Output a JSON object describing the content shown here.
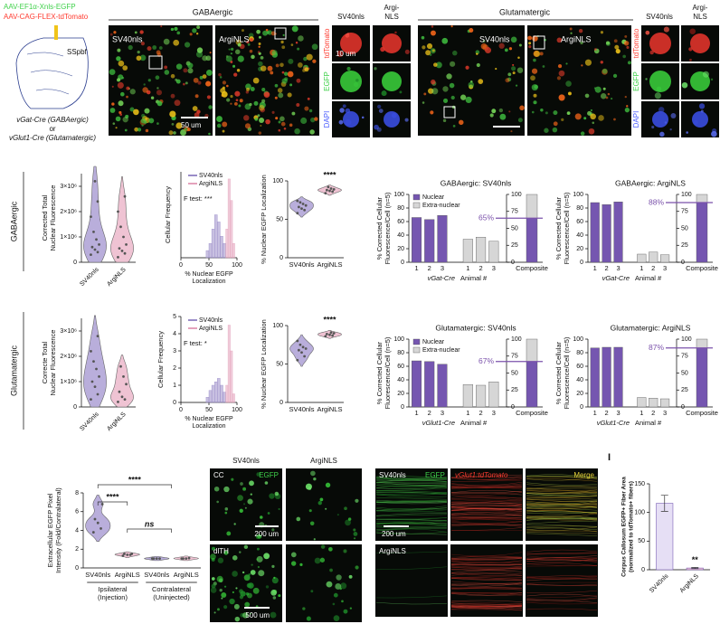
{
  "panel_a": {
    "virus_egfp": "AAV-EF1α-Xnls-EGFP",
    "virus_tdtomato": "AAV-CAG-FLEX-tdTomato",
    "region": "SSpbf",
    "line_gabaergic": "vGat-Cre (GABAergic)",
    "or": "or",
    "line_glutamatergic": "vGlut1-Cre (Glutamatergic)"
  },
  "gabaergic_images": {
    "title": "GABAergic",
    "left": "SV40nls",
    "right": "ArgiNLS",
    "scale": "50 um",
    "zoom_left": "SV40nls",
    "zoom_right": [
      "Argi-",
      "NLS"
    ],
    "rows": [
      "tdTomato",
      "EGFP",
      "DAPI"
    ],
    "zoom_scale": "10 um"
  },
  "glutamatergic_images": {
    "title": "Glutamatergic",
    "left": "SV40nls",
    "right": "ArgiNLS",
    "zoom_left": "SV40nls",
    "zoom_right": [
      "Argi-",
      "NLS"
    ],
    "rows": [
      "tdTomato",
      "EGFP",
      "DAPI"
    ]
  },
  "row_labels": [
    "GABAergic",
    "Glutamatergic"
  ],
  "axon_images": {
    "left": "SV40nls",
    "right": "ArgiNLS",
    "region_top": "CC",
    "channel": "EGFP",
    "scale_top": "200 um",
    "region_bottom": "dlTH",
    "scale_bottom": "500 um"
  },
  "projection_images": {
    "row_top": "SV40nls",
    "row_bottom": "ArgiNLS",
    "channels": [
      "EGFP",
      "vGlut1:tdTomato",
      "Merge"
    ],
    "scale": "200 um"
  },
  "panel_i_letter": "I",
  "chart_data": [
    {
      "type": "violin",
      "y_label": [
        "Corrected Total",
        "Nuclear Fluorescence"
      ],
      "categories": [
        "SV40nls",
        "ArgiNLS"
      ],
      "colors": [
        "#b9aedb",
        "#efc3d3"
      ],
      "values": [
        [
          300000,
          400000,
          500000,
          600000,
          700000,
          900000,
          1200000,
          1800000,
          2400000,
          3200000
        ],
        [
          200000,
          350000,
          450000,
          550000,
          700000,
          1000000,
          1400000,
          2000000,
          2600000
        ]
      ],
      "ylim": [
        0,
        3500000
      ],
      "yticks": [
        0,
        {
          "value": 1000000,
          "label": "1×10⁶"
        },
        {
          "value": 2000000,
          "label": "2×10⁶"
        },
        {
          "value": 3000000,
          "label": "3×10⁶"
        }
      ]
    },
    {
      "type": "histogram",
      "y_label": [
        "Cellular Frequency"
      ],
      "x_label": [
        "% Nuclear EGFP",
        "Localization"
      ],
      "annotation": "F test: ***",
      "xlim": [
        0,
        100
      ],
      "xticks": [
        0,
        50,
        100
      ],
      "ylim": [
        0,
        6
      ],
      "series": [
        {
          "name": "SV40nls",
          "color": "#9a8cc8",
          "bins": [
            45,
            50,
            55,
            60,
            65,
            70,
            75,
            80
          ],
          "values": [
            0.5,
            1,
            2,
            3,
            2.5,
            1.5,
            1
          ]
        },
        {
          "name": "ArgiNLS",
          "color": "#e4a2bc",
          "bins": [
            80,
            84,
            88,
            92,
            96
          ],
          "values": [
            2,
            5.5,
            4,
            1
          ]
        }
      ]
    },
    {
      "type": "violin",
      "y_label": [
        "% Nuclear EGFP Localization"
      ],
      "categories": [
        "SV40nls",
        "ArgiNLS"
      ],
      "colors": [
        "#b9aedb",
        "#efc3d3"
      ],
      "significance": "****",
      "values": [
        [
          58,
          62,
          64,
          66,
          68,
          70,
          72,
          74
        ],
        [
          84,
          86,
          87,
          88,
          89,
          90,
          92
        ]
      ],
      "ylim": [
        0,
        100
      ],
      "yticks": [
        0,
        50,
        100
      ]
    },
    {
      "type": "composite_bar",
      "title": "GABAergic: SV40nls",
      "y_label": [
        "% Corrected Cellular",
        "Fluorescence/Cell (n=5)"
      ],
      "x_label": [
        "vGat-Cre",
        "Animal #"
      ],
      "categories": [
        "1",
        "2",
        "3"
      ],
      "series": [
        {
          "name": "Nuclear",
          "color": "#7556b0",
          "values": [
            66,
            63,
            69
          ]
        },
        {
          "name": "Extra-nuclear",
          "color": "#d6d6d6",
          "values": [
            34,
            37,
            31
          ]
        }
      ],
      "composite": {
        "label": "Composite",
        "values": [
          65,
          35
        ]
      },
      "reference": {
        "value": 65,
        "label": "65%"
      },
      "ylim": [
        0,
        100
      ],
      "yticks": [
        0,
        20,
        40,
        60,
        80,
        100
      ],
      "y2lim": [
        0,
        100
      ],
      "y2ticks": [
        0,
        25,
        50,
        75,
        100
      ]
    },
    {
      "type": "composite_bar",
      "title": "GABAergic: ArgiNLS",
      "y_label": [
        "% Corrected Cellular",
        "Fluorescence/Cell (n=5)"
      ],
      "x_label": [
        "vGat-Cre",
        "Animal #"
      ],
      "categories": [
        "1",
        "2",
        "3"
      ],
      "series": [
        {
          "color": "#7556b0",
          "values": [
            88,
            85,
            89
          ]
        },
        {
          "color": "#d6d6d6",
          "values": [
            12,
            15,
            11
          ]
        }
      ],
      "composite": {
        "label": "Composite",
        "values": [
          88,
          12
        ]
      },
      "reference": {
        "value": 88,
        "label": "88%"
      },
      "ylim": [
        0,
        100
      ],
      "yticks": [
        0,
        20,
        40,
        60,
        80,
        100
      ],
      "y2lim": [
        0,
        100
      ],
      "y2ticks": [
        0,
        25,
        50,
        75,
        100
      ]
    },
    {
      "type": "violin",
      "y_label": [
        "Correcte Total",
        "Nuclear Fluorescence"
      ],
      "categories": [
        "SV40nls",
        "ArgiNLS"
      ],
      "colors": [
        "#b9aedb",
        "#efc3d3"
      ],
      "values": [
        [
          300000,
          500000,
          800000,
          1000000,
          1200000,
          1500000,
          1800000,
          2200000,
          2800000
        ],
        [
          200000,
          300000,
          400000,
          600000,
          900000,
          1200000,
          1600000
        ]
      ],
      "ylim": [
        0,
        3500000
      ],
      "yticks": [
        0,
        {
          "value": 1000000,
          "label": "1×10⁶"
        },
        {
          "value": 2000000,
          "label": "2×10⁶"
        },
        {
          "value": 3000000,
          "label": "3×10⁶"
        }
      ]
    },
    {
      "type": "histogram",
      "y_label": [
        "Cellular Frequency"
      ],
      "x_label": [
        "% Nuclear EGFP",
        "Localization"
      ],
      "annotation": "F test: *",
      "xlim": [
        0,
        100
      ],
      "xticks": [
        0,
        50,
        100
      ],
      "ylim": [
        0,
        5
      ],
      "yticks": [
        0,
        1,
        2,
        3,
        4,
        5
      ],
      "series": [
        {
          "name": "SV40nls",
          "color": "#9a8cc8",
          "bins": [
            45,
            50,
            55,
            60,
            65,
            70,
            75,
            80
          ],
          "values": [
            0.3,
            0.7,
            1,
            1.2,
            1.4,
            1,
            0.6
          ]
        },
        {
          "name": "ArgiNLS",
          "color": "#e4a2bc",
          "bins": [
            80,
            84,
            88,
            92,
            96
          ],
          "values": [
            1,
            4.5,
            3,
            0.5
          ]
        }
      ]
    },
    {
      "type": "violin",
      "y_label": [
        "% Nuclear EGFP Localization"
      ],
      "categories": [
        "SV40nls",
        "ArgiNLS"
      ],
      "colors": [
        "#b9aedb",
        "#efc3d3"
      ],
      "significance": "****",
      "values": [
        [
          55,
          60,
          65,
          68,
          70,
          72,
          75,
          80
        ],
        [
          86,
          87,
          88,
          89,
          90,
          91
        ]
      ],
      "ylim": [
        0,
        100
      ],
      "yticks": [
        0,
        50,
        100
      ]
    },
    {
      "type": "composite_bar",
      "title": "Glutamatergic: SV40nls",
      "y_label": [
        "% Corrected Cellular",
        "Fluorescence/Cell (n=5)"
      ],
      "x_label": [
        "vGlut1-Cre",
        "Animal #"
      ],
      "categories": [
        "1",
        "2",
        "3"
      ],
      "series": [
        {
          "name": "Nuclear",
          "color": "#7556b0",
          "values": [
            68,
            67,
            63
          ]
        },
        {
          "name": "Extra-nuclear",
          "color": "#d6d6d6",
          "values": [
            33,
            32,
            37
          ]
        }
      ],
      "composite": {
        "label": "Composite",
        "values": [
          67,
          33
        ]
      },
      "reference": {
        "value": 67,
        "label": "67%"
      },
      "ylim": [
        0,
        100
      ],
      "yticks": [
        0,
        20,
        40,
        60,
        80,
        100
      ],
      "y2lim": [
        0,
        100
      ],
      "y2ticks": [
        0,
        25,
        50,
        75,
        100
      ]
    },
    {
      "type": "composite_bar",
      "title": "Glutamatergic: ArgiNLS",
      "y_label": [
        "% Corrected Cellular",
        "Fluorescence/Cell (n=5)"
      ],
      "x_label": [
        "vGlut1-Cre",
        "Animal #"
      ],
      "categories": [
        "1",
        "2",
        "3"
      ],
      "series": [
        {
          "color": "#7556b0",
          "values": [
            87,
            88,
            88
          ]
        },
        {
          "color": "#d6d6d6",
          "values": [
            14,
            13,
            12
          ]
        }
      ],
      "composite": {
        "label": "Composite",
        "values": [
          87,
          13
        ]
      },
      "reference": {
        "value": 87,
        "label": "87%"
      },
      "ylim": [
        0,
        100
      ],
      "yticks": [
        0,
        20,
        40,
        60,
        80,
        100
      ],
      "y2lim": [
        0,
        100
      ],
      "y2ticks": [
        0,
        25,
        50,
        75,
        100
      ]
    },
    {
      "type": "violin",
      "y_label": [
        "Extracellular EGFP Pixel",
        "Intensity (Fold/Contralateral)"
      ],
      "categories": [
        "SV40nls",
        "ArgiNLS",
        "SV40nls",
        "ArgiNLS"
      ],
      "colors": [
        "#b9aedb",
        "#efc3d3",
        "#b9aedb",
        "#efc3d3"
      ],
      "group_labels": [
        [
          "Ipsilateral",
          "(Injection)"
        ],
        [
          "Contralateral",
          "(Uninjected)"
        ]
      ],
      "significance": [
        "****",
        "****",
        "ns"
      ],
      "values": [
        [
          3.8,
          4.2,
          4.8,
          5.2,
          6.8
        ],
        [
          1.3,
          1.4,
          1.4,
          1.5,
          1.5
        ],
        [
          1,
          1,
          1,
          1
        ],
        [
          1,
          1.05,
          1,
          1
        ]
      ],
      "ylim": [
        0,
        8
      ],
      "yticks": [
        0,
        2,
        4,
        6,
        8
      ]
    },
    {
      "type": "bar",
      "y_label": [
        "Corpus Callosum EGFP+ Fiber Area",
        "(normalized to tdTomato+ fibers)"
      ],
      "categories": [
        "SV40nls",
        "ArgiNLS"
      ],
      "colors": [
        "#e6dff5",
        "#f2c2d3"
      ],
      "values": [
        116,
        3
      ],
      "errors": [
        14,
        1
      ],
      "significance": "**",
      "ylim": [
        0,
        150
      ],
      "yticks": [
        0,
        50,
        100,
        150
      ]
    }
  ]
}
